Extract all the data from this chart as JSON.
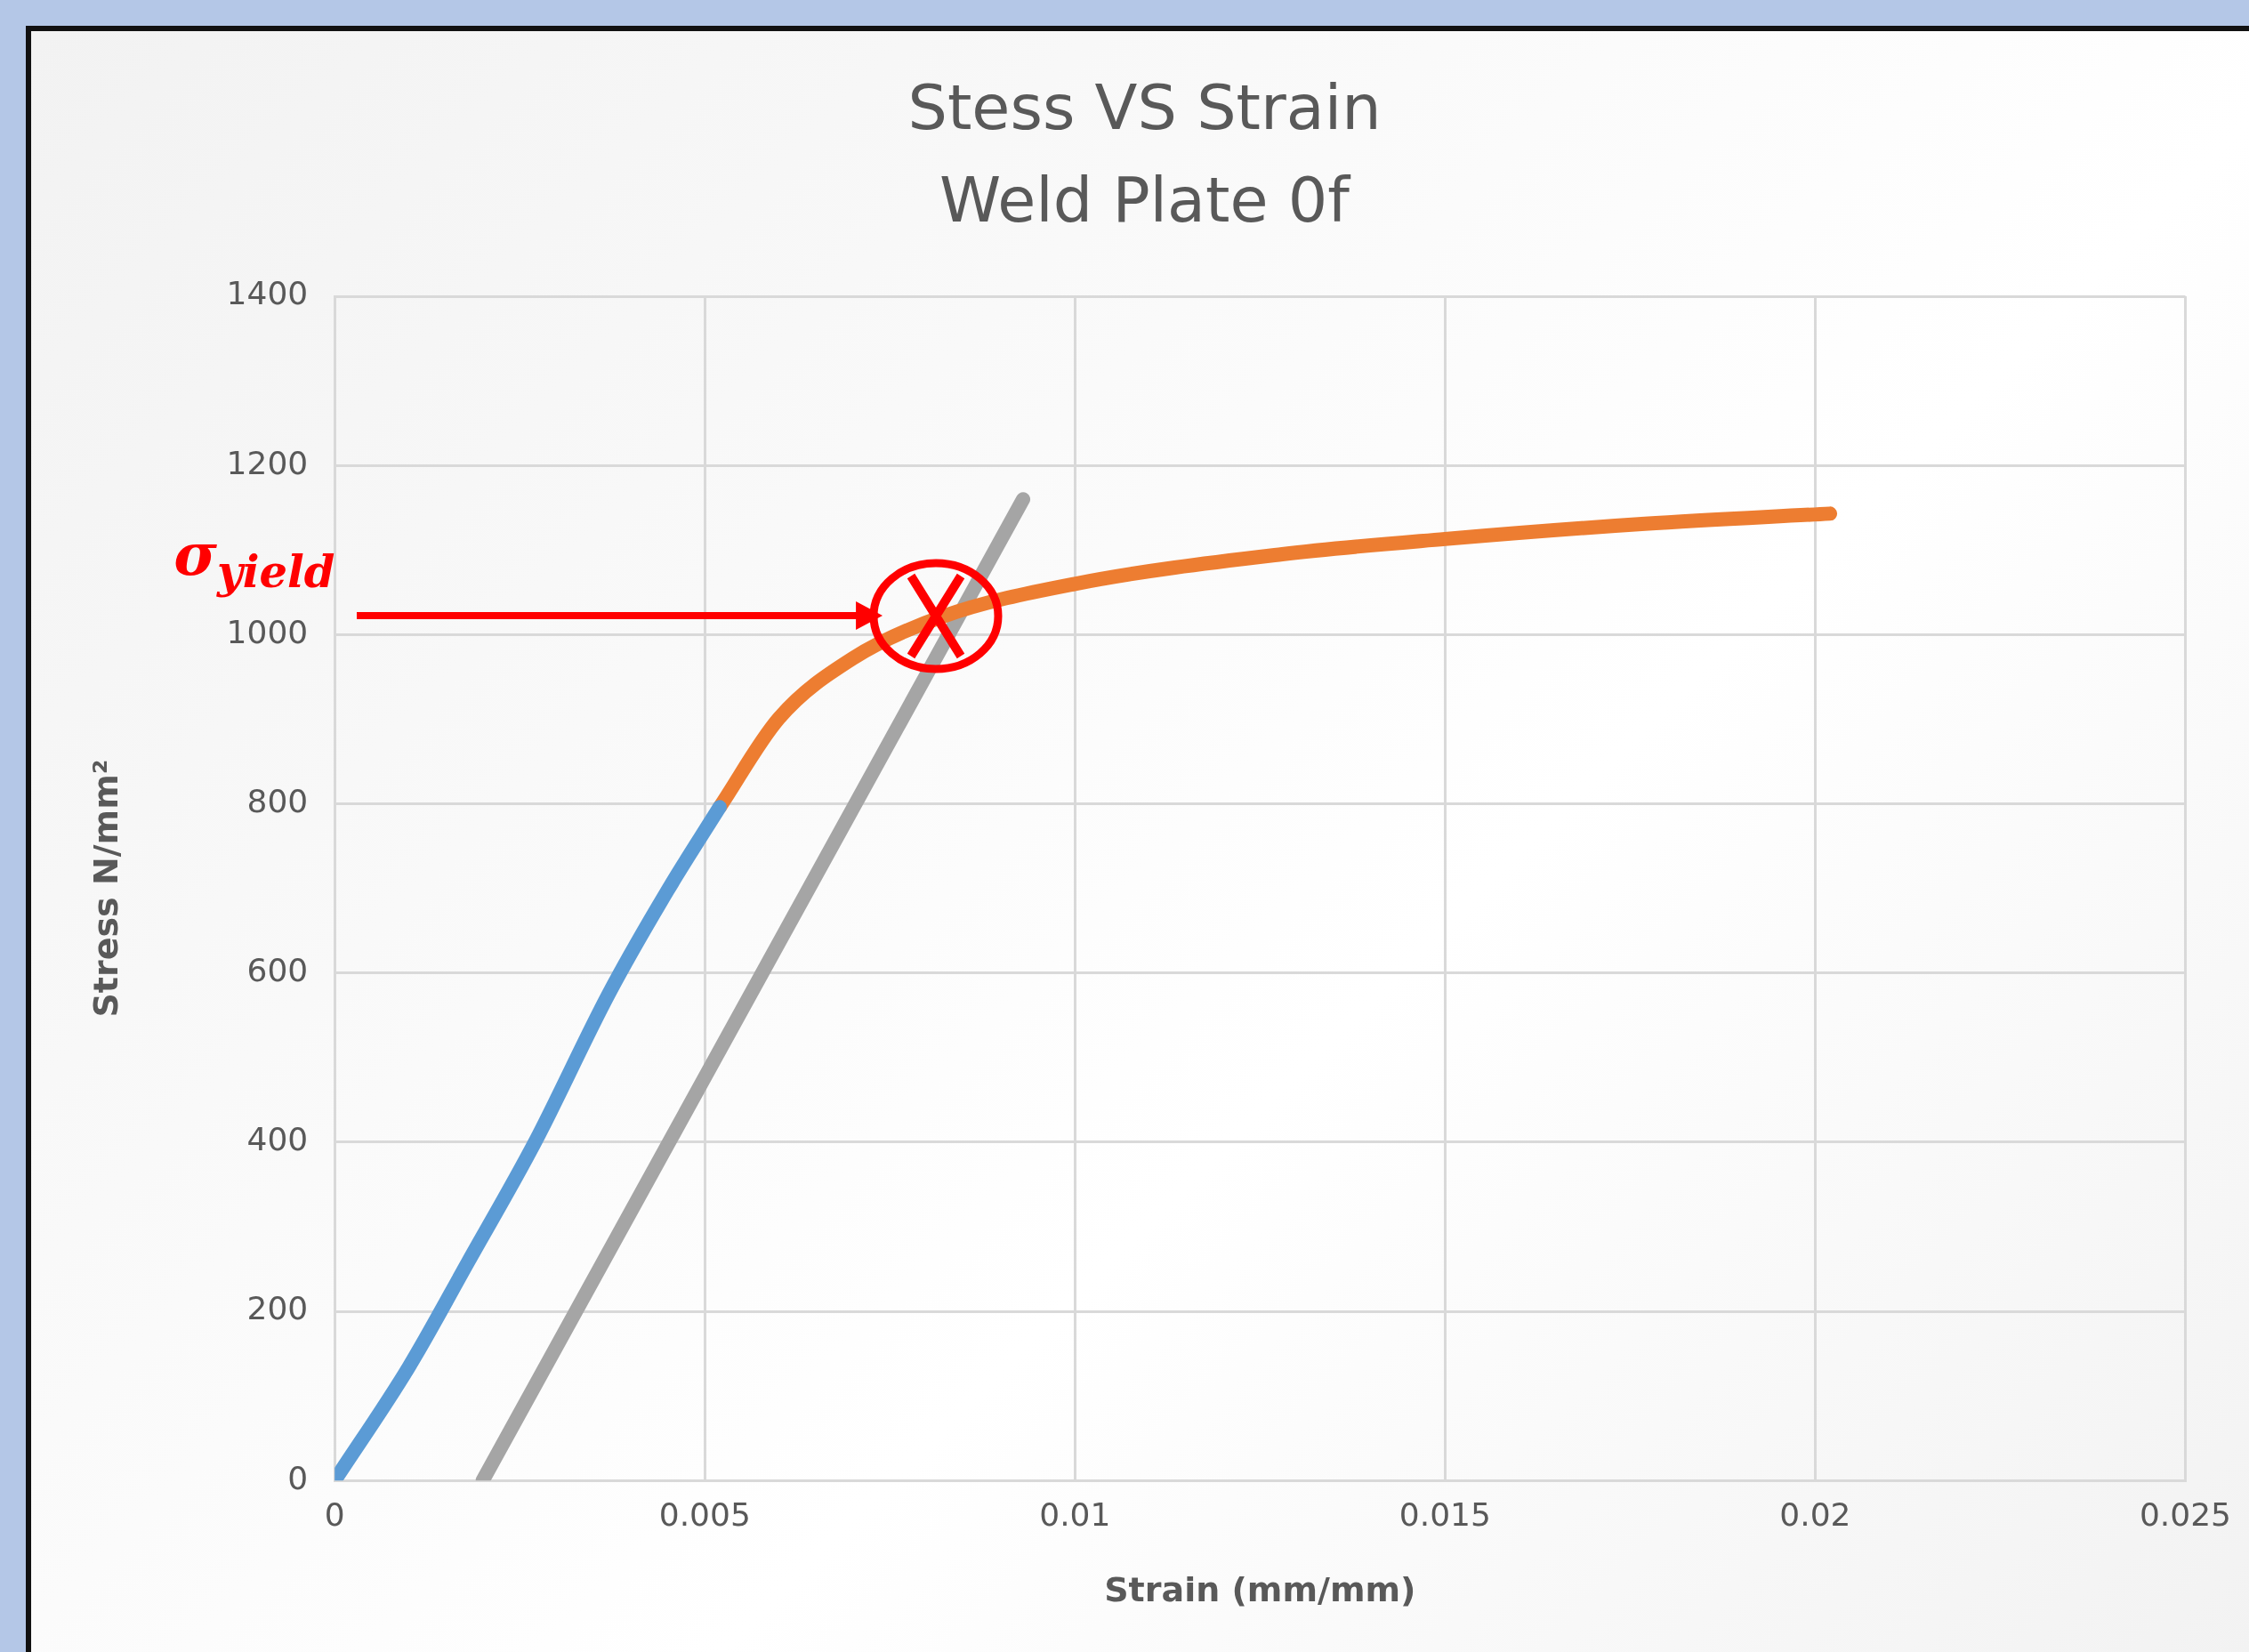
{
  "chart_data": {
    "type": "line",
    "title": "Stess VS Strain",
    "subtitle": "Weld Plate 0f",
    "xlabel": "Strain (mm/mm)",
    "ylabel": "Stress N/mm²",
    "xlim": [
      0,
      0.025
    ],
    "xticks": [
      0,
      0.005,
      0.01,
      0.015,
      0.02,
      0.025
    ],
    "ylim": [
      0,
      1400
    ],
    "yticks": [
      0,
      200,
      400,
      600,
      800,
      1000,
      1200,
      1400
    ],
    "grid": true,
    "line_style": "solid",
    "series": [
      {
        "color": "#5b9bd5",
        "x": [
          0,
          0.001,
          0.0018,
          0.0027,
          0.0037,
          0.0045,
          0.0052
        ],
        "values": [
          0,
          134,
          258,
          399,
          575,
          698,
          796
        ]
      },
      {
        "color": "#ed7d31",
        "x": [
          0.0052,
          0.006,
          0.007,
          0.0082,
          0.01,
          0.0128,
          0.015,
          0.0177,
          0.0202
        ],
        "values": [
          796,
          901,
          972,
          1021,
          1060,
          1095,
          1113,
          1131,
          1143
        ]
      },
      {
        "color": "#a5a5a5",
        "x": [
          0.002,
          0.0093
        ],
        "values": [
          0,
          1160
        ]
      }
    ],
    "annotations": [
      "σ$_{yield}$"
    ]
  }
}
